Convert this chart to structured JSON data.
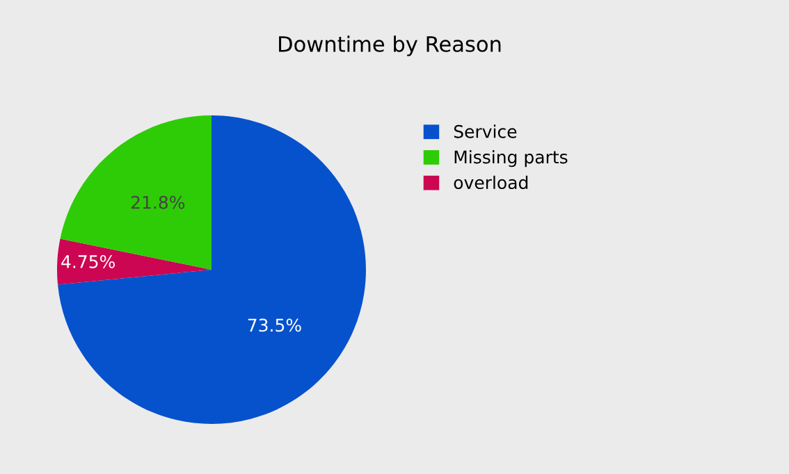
{
  "chart_data": {
    "type": "pie",
    "title": "Downtime by Reason",
    "categories": [
      "Service",
      "overload",
      "Missing parts"
    ],
    "values": [
      73.5,
      4.75,
      21.8
    ],
    "colors": [
      "#0652cc",
      "#cc0652",
      "#2ecc06"
    ],
    "value_labels": [
      "73.5%",
      "4.75%",
      "21.8%"
    ],
    "legend": "top right"
  }
}
